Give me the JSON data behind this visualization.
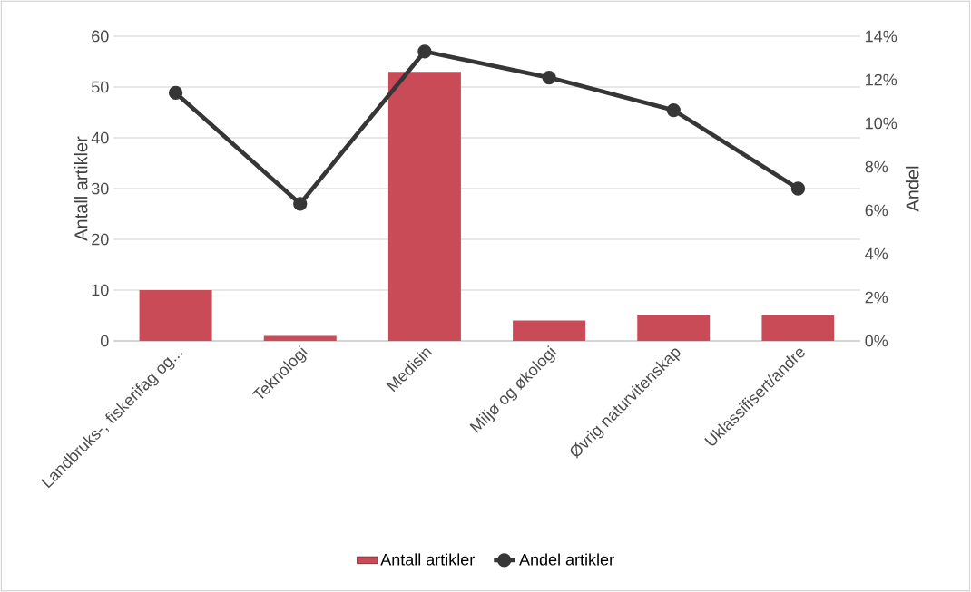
{
  "chart_data": {
    "type": "bar",
    "categories": [
      "Landbruks-, fiskerifag og...",
      "Teknologi",
      "Medisin",
      "Miljø og økologi",
      "Øvrig naturvitenskap",
      "Uklassifisert/andre"
    ],
    "series": [
      {
        "name": "Antall artikler",
        "color": "#c84b57",
        "values": [
          10,
          1,
          53,
          4,
          5,
          5
        ]
      },
      {
        "name": "Andel artikler",
        "type": "line",
        "axis": "y2",
        "color": "#363636",
        "marker": "circle",
        "values": [
          11.4,
          6.3,
          13.3,
          12.1,
          10.6,
          7.0
        ]
      }
    ],
    "ylabel": "Antall artikler",
    "y2label": "Andel",
    "ylim": [
      0,
      60
    ],
    "yticks": [
      0,
      10,
      20,
      30,
      40,
      50,
      60
    ],
    "y2lim": [
      0,
      14
    ],
    "y2ticks": [
      {
        "value": 0,
        "label": "0%"
      },
      {
        "value": 2,
        "label": "2%"
      },
      {
        "value": 4,
        "label": "4%"
      },
      {
        "value": 6,
        "label": "6%"
      },
      {
        "value": 8,
        "label": "8%"
      },
      {
        "value": 10,
        "label": "10%"
      },
      {
        "value": 12,
        "label": "12%"
      },
      {
        "value": 14,
        "label": "14%"
      }
    ],
    "grid": "y",
    "legend": "bottom"
  }
}
